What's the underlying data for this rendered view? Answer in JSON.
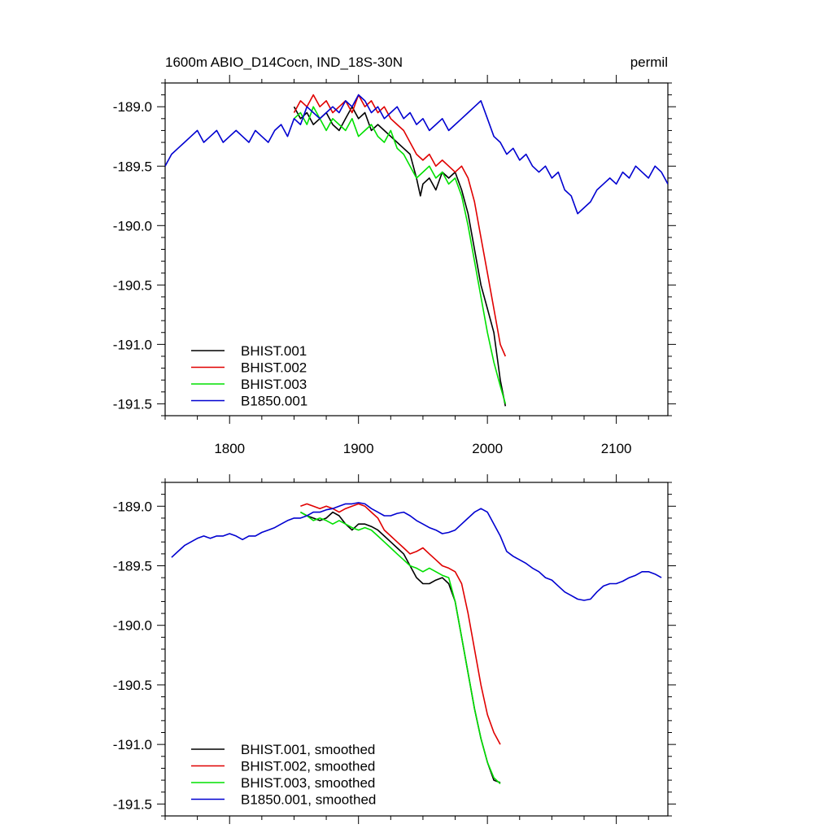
{
  "header": {
    "title": "1600m ABIO_D14Cocn, IND_18S-30N",
    "units": "permil"
  },
  "colors": {
    "BHIST.001": "#000000",
    "BHIST.002": "#e00000",
    "BHIST.003": "#00e000",
    "B1850.001": "#0000d0"
  },
  "chart_data": [
    {
      "type": "line",
      "xlim": [
        1750,
        2140
      ],
      "ylim": [
        -191.6,
        -188.8
      ],
      "x_ticks": [
        1800,
        1900,
        2000,
        2100
      ],
      "x_tick_labels": [
        "1800",
        "1900",
        "2000",
        "2100"
      ],
      "y_ticks": [
        -189.0,
        -189.5,
        -190.0,
        -190.5,
        -191.0,
        -191.5
      ],
      "y_tick_labels": [
        "-189.0",
        "-189.5",
        "-190.0",
        "-190.5",
        "-191.0",
        "-191.5"
      ],
      "legend_position": "bottom-left",
      "series": [
        {
          "name": "BHIST.001",
          "color_key": "BHIST.001",
          "x": [
            1850,
            1855,
            1860,
            1865,
            1870,
            1875,
            1880,
            1885,
            1890,
            1895,
            1900,
            1905,
            1910,
            1915,
            1920,
            1925,
            1930,
            1935,
            1940,
            1945,
            1948,
            1950,
            1955,
            1960,
            1965,
            1970,
            1975,
            1980,
            1985,
            1990,
            1995,
            2000,
            2005,
            2010,
            2014
          ],
          "y": [
            -189.0,
            -189.1,
            -189.05,
            -189.15,
            -189.1,
            -189.05,
            -189.15,
            -189.2,
            -189.1,
            -189.0,
            -189.1,
            -189.05,
            -189.2,
            -189.15,
            -189.2,
            -189.25,
            -189.3,
            -189.35,
            -189.4,
            -189.6,
            -189.75,
            -189.65,
            -189.6,
            -189.7,
            -189.55,
            -189.6,
            -189.55,
            -189.7,
            -189.9,
            -190.2,
            -190.5,
            -190.7,
            -190.9,
            -191.3,
            -191.52
          ]
        },
        {
          "name": "BHIST.002",
          "color_key": "BHIST.002",
          "x": [
            1850,
            1855,
            1860,
            1865,
            1870,
            1875,
            1880,
            1885,
            1890,
            1895,
            1900,
            1905,
            1910,
            1915,
            1920,
            1925,
            1930,
            1935,
            1940,
            1945,
            1950,
            1955,
            1960,
            1965,
            1970,
            1975,
            1980,
            1985,
            1990,
            1995,
            2000,
            2005,
            2010,
            2014
          ],
          "y": [
            -189.05,
            -188.95,
            -189.0,
            -188.9,
            -189.0,
            -188.95,
            -189.05,
            -189.0,
            -188.95,
            -189.05,
            -188.9,
            -189.0,
            -188.95,
            -189.05,
            -189.0,
            -189.1,
            -189.15,
            -189.2,
            -189.3,
            -189.4,
            -189.45,
            -189.4,
            -189.5,
            -189.45,
            -189.5,
            -189.55,
            -189.5,
            -189.6,
            -189.8,
            -190.1,
            -190.4,
            -190.7,
            -191.0,
            -191.1
          ]
        },
        {
          "name": "BHIST.003",
          "color_key": "BHIST.003",
          "x": [
            1850,
            1855,
            1860,
            1865,
            1870,
            1875,
            1880,
            1885,
            1890,
            1895,
            1900,
            1905,
            1910,
            1915,
            1920,
            1925,
            1930,
            1935,
            1940,
            1945,
            1950,
            1955,
            1960,
            1965,
            1970,
            1975,
            1980,
            1985,
            1990,
            1995,
            2000,
            2005,
            2010,
            2014
          ],
          "y": [
            -189.1,
            -189.05,
            -189.15,
            -189.0,
            -189.1,
            -189.2,
            -189.1,
            -189.15,
            -189.2,
            -189.1,
            -189.25,
            -189.2,
            -189.15,
            -189.25,
            -189.3,
            -189.2,
            -189.35,
            -189.4,
            -189.5,
            -189.6,
            -189.55,
            -189.5,
            -189.6,
            -189.55,
            -189.65,
            -189.6,
            -189.75,
            -190.0,
            -190.3,
            -190.6,
            -190.9,
            -191.15,
            -191.35,
            -191.5
          ]
        },
        {
          "name": "B1850.001",
          "color_key": "B1850.001",
          "x": [
            1750,
            1755,
            1760,
            1765,
            1770,
            1775,
            1780,
            1785,
            1790,
            1795,
            1800,
            1805,
            1810,
            1815,
            1820,
            1825,
            1830,
            1835,
            1840,
            1845,
            1850,
            1855,
            1860,
            1865,
            1870,
            1875,
            1880,
            1885,
            1890,
            1895,
            1900,
            1905,
            1910,
            1915,
            1920,
            1925,
            1930,
            1935,
            1940,
            1945,
            1950,
            1955,
            1960,
            1965,
            1970,
            1975,
            1980,
            1985,
            1990,
            1995,
            2000,
            2005,
            2010,
            2015,
            2020,
            2025,
            2030,
            2035,
            2040,
            2045,
            2050,
            2055,
            2060,
            2065,
            2070,
            2075,
            2080,
            2085,
            2090,
            2095,
            2100,
            2105,
            2110,
            2115,
            2120,
            2125,
            2130,
            2135,
            2140
          ],
          "y": [
            -189.5,
            -189.4,
            -189.35,
            -189.3,
            -189.25,
            -189.2,
            -189.3,
            -189.25,
            -189.2,
            -189.3,
            -189.25,
            -189.2,
            -189.25,
            -189.3,
            -189.2,
            -189.25,
            -189.3,
            -189.2,
            -189.15,
            -189.25,
            -189.1,
            -189.15,
            -189.0,
            -189.05,
            -189.1,
            -189.05,
            -189.0,
            -189.05,
            -188.95,
            -189.0,
            -188.9,
            -188.95,
            -189.05,
            -189.0,
            -189.1,
            -189.05,
            -189.0,
            -189.1,
            -189.05,
            -189.15,
            -189.1,
            -189.2,
            -189.15,
            -189.1,
            -189.2,
            -189.15,
            -189.1,
            -189.05,
            -189.0,
            -188.95,
            -189.1,
            -189.25,
            -189.3,
            -189.4,
            -189.35,
            -189.45,
            -189.4,
            -189.5,
            -189.55,
            -189.5,
            -189.6,
            -189.55,
            -189.7,
            -189.75,
            -189.9,
            -189.85,
            -189.8,
            -189.7,
            -189.65,
            -189.6,
            -189.65,
            -189.55,
            -189.6,
            -189.5,
            -189.55,
            -189.6,
            -189.5,
            -189.55,
            -189.65
          ]
        }
      ],
      "legend": [
        {
          "label": "BHIST.001",
          "color_key": "BHIST.001"
        },
        {
          "label": "BHIST.002",
          "color_key": "BHIST.002"
        },
        {
          "label": "BHIST.003",
          "color_key": "BHIST.003"
        },
        {
          "label": "B1850.001",
          "color_key": "B1850.001"
        }
      ]
    },
    {
      "type": "line",
      "xlim": [
        1750,
        2140
      ],
      "ylim": [
        -191.6,
        -188.8
      ],
      "y_ticks": [
        -189.0,
        -189.5,
        -190.0,
        -190.5,
        -191.0,
        -191.5
      ],
      "y_tick_labels": [
        "-189.0",
        "-189.5",
        "-190.0",
        "-190.5",
        "-191.0",
        "-191.5"
      ],
      "legend_position": "bottom-left",
      "series": [
        {
          "name": "BHIST.001, smoothed",
          "color_key": "BHIST.001",
          "x": [
            1855,
            1860,
            1865,
            1870,
            1875,
            1880,
            1885,
            1890,
            1895,
            1900,
            1905,
            1910,
            1915,
            1920,
            1925,
            1930,
            1935,
            1940,
            1945,
            1950,
            1955,
            1960,
            1965,
            1970,
            1975,
            1980,
            1985,
            1990,
            1995,
            2000,
            2005,
            2010
          ],
          "y": [
            -189.05,
            -189.08,
            -189.1,
            -189.12,
            -189.1,
            -189.05,
            -189.08,
            -189.15,
            -189.2,
            -189.15,
            -189.15,
            -189.17,
            -189.2,
            -189.25,
            -189.3,
            -189.35,
            -189.4,
            -189.5,
            -189.6,
            -189.65,
            -189.65,
            -189.62,
            -189.6,
            -189.65,
            -189.8,
            -190.1,
            -190.4,
            -190.7,
            -190.95,
            -191.15,
            -191.3,
            -191.32
          ]
        },
        {
          "name": "BHIST.002, smoothed",
          "color_key": "BHIST.002",
          "x": [
            1855,
            1860,
            1865,
            1870,
            1875,
            1880,
            1885,
            1890,
            1895,
            1900,
            1905,
            1910,
            1915,
            1920,
            1925,
            1930,
            1935,
            1940,
            1945,
            1950,
            1955,
            1960,
            1965,
            1970,
            1975,
            1980,
            1985,
            1990,
            1995,
            2000,
            2005,
            2010
          ],
          "y": [
            -189.0,
            -188.98,
            -189.0,
            -189.02,
            -189.0,
            -189.02,
            -189.05,
            -189.02,
            -189.0,
            -188.98,
            -189.0,
            -189.05,
            -189.1,
            -189.2,
            -189.25,
            -189.3,
            -189.35,
            -189.4,
            -189.38,
            -189.35,
            -189.4,
            -189.45,
            -189.5,
            -189.52,
            -189.55,
            -189.65,
            -189.9,
            -190.2,
            -190.5,
            -190.75,
            -190.9,
            -191.0
          ]
        },
        {
          "name": "BHIST.003, smoothed",
          "color_key": "BHIST.003",
          "x": [
            1855,
            1860,
            1865,
            1870,
            1875,
            1880,
            1885,
            1890,
            1895,
            1900,
            1905,
            1910,
            1915,
            1920,
            1925,
            1930,
            1935,
            1940,
            1945,
            1950,
            1955,
            1960,
            1965,
            1970,
            1975,
            1980,
            1985,
            1990,
            1995,
            2000,
            2005,
            2010
          ],
          "y": [
            -189.05,
            -189.08,
            -189.12,
            -189.1,
            -189.12,
            -189.15,
            -189.12,
            -189.15,
            -189.18,
            -189.2,
            -189.18,
            -189.2,
            -189.25,
            -189.3,
            -189.35,
            -189.4,
            -189.45,
            -189.5,
            -189.52,
            -189.55,
            -189.52,
            -189.55,
            -189.58,
            -189.6,
            -189.8,
            -190.1,
            -190.4,
            -190.7,
            -190.95,
            -191.15,
            -191.28,
            -191.33
          ]
        },
        {
          "name": "B1850.001, smoothed",
          "color_key": "B1850.001",
          "x": [
            1755,
            1760,
            1765,
            1770,
            1775,
            1780,
            1785,
            1790,
            1795,
            1800,
            1805,
            1810,
            1815,
            1820,
            1825,
            1830,
            1835,
            1840,
            1845,
            1850,
            1855,
            1860,
            1865,
            1870,
            1875,
            1880,
            1885,
            1890,
            1895,
            1900,
            1905,
            1910,
            1915,
            1920,
            1925,
            1930,
            1935,
            1940,
            1945,
            1950,
            1955,
            1960,
            1965,
            1970,
            1975,
            1980,
            1985,
            1990,
            1995,
            2000,
            2005,
            2010,
            2015,
            2020,
            2025,
            2030,
            2035,
            2040,
            2045,
            2050,
            2055,
            2060,
            2065,
            2070,
            2075,
            2080,
            2085,
            2090,
            2095,
            2100,
            2105,
            2110,
            2115,
            2120,
            2125,
            2130,
            2135
          ],
          "y": [
            -189.43,
            -189.38,
            -189.33,
            -189.3,
            -189.27,
            -189.25,
            -189.27,
            -189.25,
            -189.25,
            -189.23,
            -189.25,
            -189.28,
            -189.25,
            -189.25,
            -189.22,
            -189.2,
            -189.18,
            -189.15,
            -189.12,
            -189.1,
            -189.1,
            -189.08,
            -189.05,
            -189.05,
            -189.03,
            -189.02,
            -189.0,
            -188.98,
            -188.98,
            -188.97,
            -188.98,
            -189.02,
            -189.05,
            -189.08,
            -189.08,
            -189.06,
            -189.05,
            -189.08,
            -189.12,
            -189.15,
            -189.18,
            -189.2,
            -189.23,
            -189.22,
            -189.2,
            -189.15,
            -189.1,
            -189.05,
            -189.02,
            -189.05,
            -189.15,
            -189.25,
            -189.38,
            -189.42,
            -189.45,
            -189.48,
            -189.52,
            -189.55,
            -189.6,
            -189.62,
            -189.67,
            -189.72,
            -189.75,
            -189.78,
            -189.79,
            -189.78,
            -189.72,
            -189.67,
            -189.65,
            -189.65,
            -189.63,
            -189.6,
            -189.58,
            -189.55,
            -189.55,
            -189.57,
            -189.6
          ]
        }
      ],
      "legend": [
        {
          "label": "BHIST.001, smoothed",
          "color_key": "BHIST.001"
        },
        {
          "label": "BHIST.002, smoothed",
          "color_key": "BHIST.002"
        },
        {
          "label": "BHIST.003, smoothed",
          "color_key": "BHIST.003"
        },
        {
          "label": "B1850.001, smoothed",
          "color_key": "B1850.001"
        }
      ]
    }
  ]
}
